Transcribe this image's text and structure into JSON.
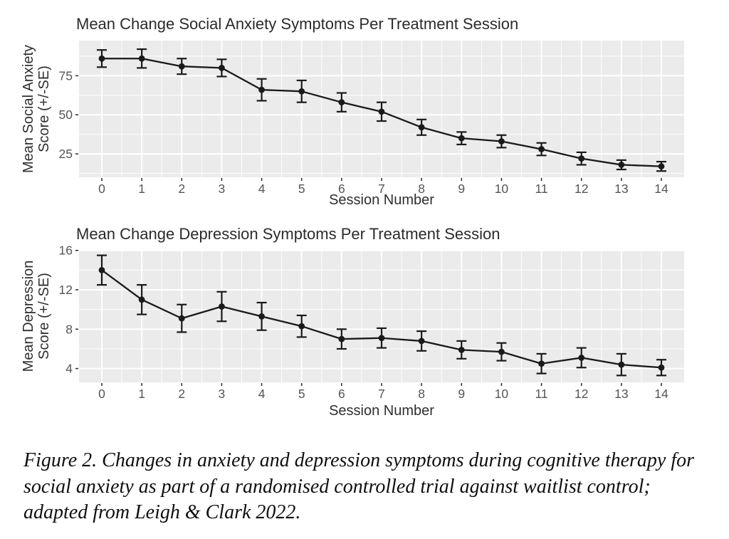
{
  "colors": {
    "page_bg": "#ffffff",
    "panel_bg": "#ebebeb",
    "grid_major": "#ffffff",
    "grid_minor": "#f5f5f5",
    "data": "#1a1a1a",
    "tick_mark": "#333333",
    "tick_label": "#555555",
    "axis_title": "#2e2e2e"
  },
  "chart_data": [
    {
      "type": "line",
      "title": "Mean Change Social Anxiety Symptoms Per Treatment Session",
      "xlabel": "Session Number",
      "ylabel_lines": [
        "Mean Social Anxiety",
        "Score (+/-SE)"
      ],
      "legend": "none",
      "grid": "on",
      "marker": "point-with-error-bars",
      "x": [
        0,
        1,
        2,
        3,
        4,
        5,
        6,
        7,
        8,
        9,
        10,
        11,
        12,
        13,
        14
      ],
      "values": [
        86,
        86,
        81,
        80,
        66,
        65,
        58,
        52,
        42,
        35,
        33,
        28,
        22,
        18,
        17
      ],
      "se": [
        5.5,
        6,
        5,
        5.5,
        7,
        7,
        6,
        6,
        5,
        4,
        4,
        4,
        4,
        3,
        3
      ],
      "ylim": [
        10,
        97.5
      ],
      "yticks": [
        25,
        50,
        75
      ],
      "yminor": [
        12.5,
        37.5,
        62.5,
        87.5
      ]
    },
    {
      "type": "line",
      "title": "Mean Change Depression Symptoms Per Treatment Session",
      "xlabel": "Session Number",
      "ylabel_lines": [
        "Mean Depression",
        "Score (+/-SE)"
      ],
      "legend": "none",
      "grid": "on",
      "marker": "point-with-error-bars",
      "x": [
        0,
        1,
        2,
        3,
        4,
        5,
        6,
        7,
        8,
        9,
        10,
        11,
        12,
        13,
        14
      ],
      "values": [
        14.0,
        11.0,
        9.1,
        10.3,
        9.3,
        8.3,
        7.0,
        7.1,
        6.8,
        5.9,
        5.7,
        4.5,
        5.1,
        4.4,
        4.1
      ],
      "se": [
        1.5,
        1.5,
        1.4,
        1.5,
        1.4,
        1.1,
        1.0,
        1.0,
        1.0,
        0.9,
        0.9,
        1.0,
        1.0,
        1.1,
        0.8
      ],
      "ylim": [
        2.6,
        16.05
      ],
      "yticks": [
        4,
        8,
        12,
        16
      ],
      "yminor": [
        6,
        10,
        14
      ]
    }
  ],
  "caption": {
    "lines": [
      "Figure 2. Changes in anxiety and depression symptoms during cognitive therapy for",
      "social anxiety as part of a randomised controlled trial against waitlist control;",
      "adapted from Leigh & Clark 2022."
    ]
  }
}
